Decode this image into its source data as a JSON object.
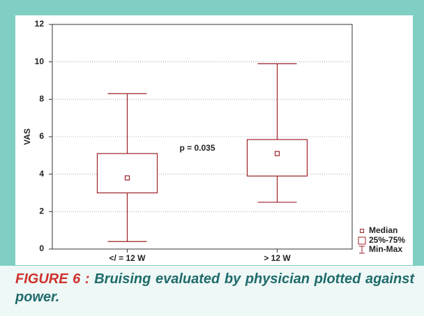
{
  "chart_data": {
    "type": "box",
    "ylabel": "VAS",
    "categories": [
      "</ = 12 W",
      "> 12 W"
    ],
    "boxes": [
      {
        "min": 0.4,
        "q1": 3.0,
        "median": 3.8,
        "q3": 5.1,
        "max": 8.3
      },
      {
        "min": 2.5,
        "q1": 3.9,
        "median": 5.1,
        "q3": 5.85,
        "max": 9.9
      }
    ],
    "color": "#9b2226",
    "ylim": [
      0,
      12
    ],
    "yticks": [
      0,
      2,
      4,
      6,
      8,
      10,
      12
    ],
    "grid": true,
    "annotation": "p = 0.035",
    "legend": [
      "Median",
      "25%-75%",
      "Min-Max"
    ]
  },
  "caption": {
    "label": "FIGURE 6 :",
    "text": "Bruising evaluated by physician plotted against power."
  }
}
